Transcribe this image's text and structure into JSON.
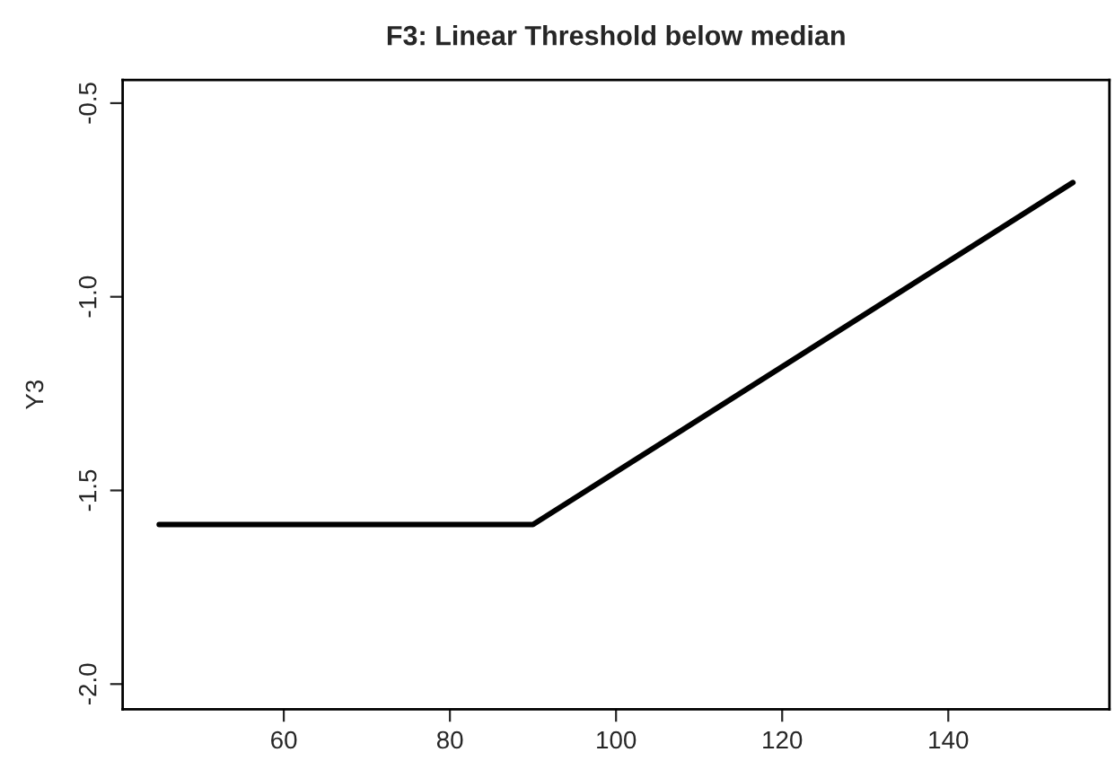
{
  "chart_data": {
    "type": "line",
    "title": "F3: Linear Threshold below median",
    "ylabel": "Y3",
    "x": [
      45,
      90,
      155
    ],
    "series": [
      {
        "color": "#000000",
        "values": [
          -1.588,
          -1.588,
          -0.705
        ]
      }
    ],
    "xlim": [
      40.6,
      159.4
    ],
    "xticks": [
      60,
      80,
      100,
      120,
      140
    ],
    "ylim": [
      -2.065,
      -0.44
    ],
    "yticks": [
      {
        "value": -2.0,
        "label": "-2.0"
      },
      {
        "value": -1.5,
        "label": "-1.5"
      },
      {
        "value": -1.0,
        "label": "-1.0"
      },
      {
        "value": -0.5,
        "label": "-0.5"
      }
    ],
    "grid": false,
    "marker": "none",
    "line_style": "solid"
  }
}
